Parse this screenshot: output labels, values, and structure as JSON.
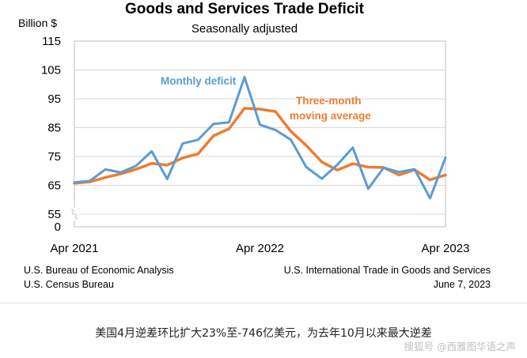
{
  "chart_data": {
    "type": "line",
    "title": "Goods and Services Trade Deficit",
    "subtitle": "Seasonally adjusted",
    "ylabel": "Billion $",
    "yticks": [
      0,
      55,
      65,
      75,
      85,
      95,
      105,
      115
    ],
    "ylim": [
      0,
      115
    ],
    "x_tick_labels": [
      "Apr 2021",
      "Apr 2022",
      "Apr 2023"
    ],
    "x": [
      "Apr 2021",
      "May 2021",
      "Jun 2021",
      "Jul 2021",
      "Aug 2021",
      "Sep 2021",
      "Oct 2021",
      "Nov 2021",
      "Dec 2021",
      "Jan 2022",
      "Feb 2022",
      "Mar 2022",
      "Apr 2022",
      "May 2022",
      "Jun 2022",
      "Jul 2022",
      "Aug 2022",
      "Sep 2022",
      "Oct 2022",
      "Nov 2022",
      "Dec 2022",
      "Jan 2023",
      "Feb 2023",
      "Mar 2023",
      "Apr 2023"
    ],
    "series": [
      {
        "name": "Monthly deficit",
        "color": "#5b9bd5",
        "values": [
          66,
          66.5,
          70.5,
          69.5,
          71.8,
          76.8,
          67.2,
          79.5,
          80.8,
          86.3,
          86.8,
          102.5,
          86.0,
          84.2,
          80.8,
          71.3,
          67.3,
          72.1,
          78.1,
          63.8,
          71.1,
          69.6,
          70.6,
          60.5,
          74.6
        ]
      },
      {
        "name": "Three-month\nmoving average",
        "color": "#ed7d31",
        "values": [
          65.7,
          66.2,
          67.7,
          69.0,
          70.6,
          72.6,
          72.0,
          74.5,
          75.9,
          82.2,
          84.6,
          91.7,
          91.4,
          90.6,
          83.7,
          78.8,
          73.1,
          70.3,
          72.5,
          71.3,
          71.2,
          68.6,
          70.4,
          66.9,
          68.6
        ]
      }
    ],
    "grid": "horizontal",
    "axis_break": true,
    "series_labels": [
      "Monthly deficit",
      "Three-month",
      "moving average"
    ]
  },
  "sources": {
    "left_line1": "U.S. Bureau of Economic Analysis",
    "left_line2": "U.S. Census Bureau",
    "right_line1": "U.S. International Trade in Goods and Services",
    "right_line2": "June 7, 2023"
  },
  "caption": "美国4月逆差环比扩大23%至-746亿美元，为去年10月以来最大逆差",
  "watermark": "搜狐号 @西雅图华语之声"
}
